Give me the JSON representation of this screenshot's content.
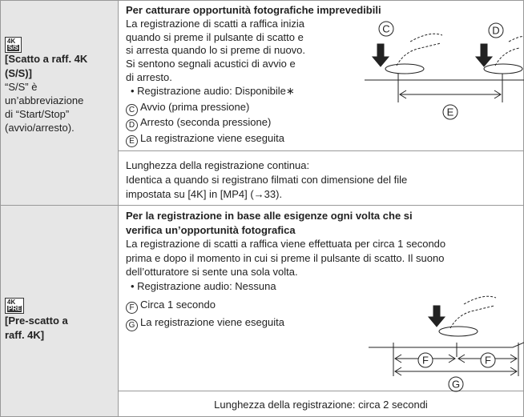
{
  "rows": [
    {
      "icon": "4K",
      "icon_sub": "S/S",
      "name_lines": [
        "[Scatto a raff. 4K",
        "(S/S)]"
      ],
      "note_lines": [
        "“S/S” è",
        "un’abbreviazione",
        "di “Start/Stop”",
        "(avvio/arresto)."
      ],
      "heading_lines": [
        "Per catturare opportunità fotografiche imprevedibili"
      ],
      "body_lines": [
        "La registrazione di scatti a raffica inizia",
        "quando si preme il pulsante di scatto e",
        "si arresta quando lo si preme di nuovo.",
        "Si sentono segnali acustici di avvio e",
        "di arresto."
      ],
      "bullet": "• Registrazione audio: Disponibile∗",
      "items": [
        {
          "marker": "C",
          "text": "Avvio (prima pressione)"
        },
        {
          "marker": "D",
          "text": "Arresto (seconda pressione)"
        },
        {
          "marker": "E",
          "text": "La registrazione viene eseguita"
        }
      ],
      "footer_lines": [
        "Lunghezza della registrazione continua:",
        "Identica a quando si registrano filmati con dimensione del file",
        "impostata su [4K] in [MP4] (→33)."
      ]
    },
    {
      "icon": "4K",
      "icon_sub": "PRE",
      "name_lines": [
        "[Pre-scatto a",
        "raff. 4K]"
      ],
      "note_lines": [],
      "heading_lines": [
        "Per la registrazione in base alle esigenze ogni volta che si",
        "verifica un’opportunità fotografica"
      ],
      "body_lines": [
        "La registrazione di scatti a raffica viene effettuata per circa 1 secondo",
        "prima e dopo il momento in cui si preme il pulsante di scatto. Il suono",
        "dell’otturatore si sente una sola volta."
      ],
      "bullet": "• Registrazione audio: Nessuna",
      "items": [
        {
          "marker": "F",
          "text": "Circa 1 secondo"
        },
        {
          "marker": "G",
          "text": "La registrazione viene eseguita"
        }
      ],
      "footer_lines": [
        "Lunghezza della registrazione: circa 2 secondi"
      ]
    }
  ]
}
